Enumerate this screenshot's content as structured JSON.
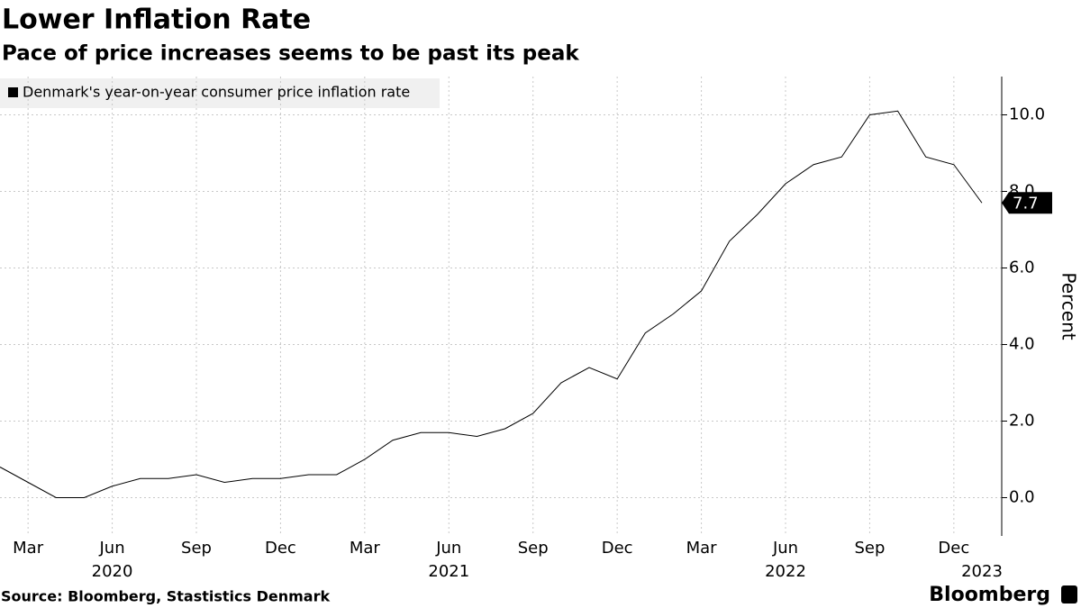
{
  "chart_data": {
    "type": "line",
    "title": "Lower Inflation Rate",
    "subtitle": "Pace of price increases seems to be past its peak",
    "categories": [
      null,
      "Mar",
      null,
      null,
      "Jun",
      null,
      null,
      "Sep",
      null,
      null,
      "Dec",
      null,
      null,
      "Mar",
      null,
      null,
      "Jun",
      null,
      null,
      "Sep",
      null,
      null,
      "Dec",
      null,
      null,
      "Mar",
      null,
      null,
      "Jun",
      null,
      null,
      "Sep",
      null,
      null,
      "Dec",
      null
    ],
    "category_years": [
      null,
      null,
      null,
      null,
      "2020",
      null,
      null,
      null,
      null,
      null,
      null,
      null,
      null,
      null,
      null,
      null,
      "2021",
      null,
      null,
      null,
      null,
      null,
      null,
      null,
      null,
      null,
      null,
      null,
      "2022",
      null,
      null,
      null,
      null,
      null,
      null,
      "2023"
    ],
    "series": [
      {
        "name": "Denmark's year-on-year consumer price inflation rate",
        "color": "#000000",
        "values": [
          0.8,
          0.4,
          0.0,
          0.0,
          0.3,
          0.5,
          0.5,
          0.6,
          0.4,
          0.5,
          0.5,
          0.6,
          0.6,
          1.0,
          1.5,
          1.7,
          1.7,
          1.6,
          1.8,
          2.2,
          3.0,
          3.4,
          3.1,
          4.3,
          4.8,
          5.4,
          6.7,
          7.4,
          8.2,
          8.7,
          8.9,
          10.0,
          10.1,
          8.9,
          8.7,
          7.7
        ]
      }
    ],
    "ylim": [
      -1.0,
      11.0
    ],
    "yticks": [
      {
        "value": 0,
        "label": "0.0"
      },
      {
        "value": 2,
        "label": "2.0"
      },
      {
        "value": 4,
        "label": "4.0"
      },
      {
        "value": 6,
        "label": "6.0"
      },
      {
        "value": 8,
        "label": "8.0"
      },
      {
        "value": 10,
        "label": "10.0"
      }
    ],
    "y_label": "Percent",
    "grid": true,
    "legend": "top-left",
    "source": "Source: Bloomberg, Stastistics Denmark",
    "brand": "Bloomberg"
  }
}
